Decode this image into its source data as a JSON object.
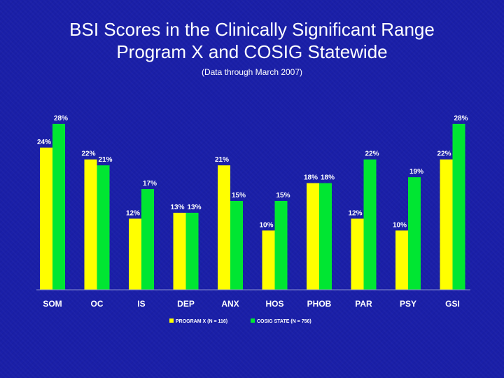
{
  "chart_data": {
    "type": "bar",
    "title_line1": "BSI Scores in the Clinically Significant Range",
    "title_line2": "Program X and COSIG Statewide",
    "subtitle": "(Data through March 2007)",
    "categories": [
      "SOM",
      "OC",
      "IS",
      "DEP",
      "ANX",
      "HOS",
      "PHOB",
      "PAR",
      "PSY",
      "GSI"
    ],
    "series": [
      {
        "name": "PROGRAM X (N = 116)",
        "color": "#ffff00",
        "values": [
          24,
          22,
          12,
          13,
          21,
          10,
          18,
          12,
          10,
          22
        ],
        "labels": [
          "24%",
          "22%",
          "12%",
          "13%",
          "21%",
          "10%",
          "18%",
          "12%",
          "10%",
          "22%"
        ]
      },
      {
        "name": "COSIG STATE (N = 756)",
        "color": "#00e632",
        "values": [
          28,
          21,
          17,
          13,
          15,
          15,
          18,
          22,
          19,
          28
        ],
        "labels": [
          "28%",
          "21%",
          "17%",
          "13%",
          "15%",
          "15%",
          "18%",
          "22%",
          "19%",
          "28%"
        ]
      }
    ],
    "ylim": [
      0,
      30
    ],
    "legend_position": "bottom"
  }
}
